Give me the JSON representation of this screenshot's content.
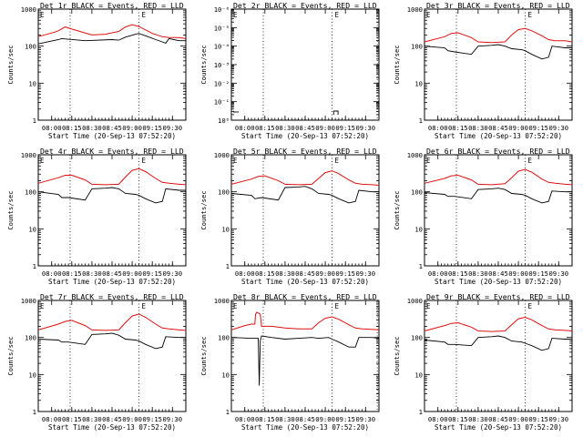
{
  "chart_data": [
    {
      "type": "line",
      "title": "Det 1r BLACK = Events, RED = LLD",
      "ylabel": "Counts/sec",
      "xlabel": "Start Time (20-Sep-13 07:52:20)",
      "yscale": "log",
      "ylim": [
        1,
        1000
      ],
      "yticklabels": [
        "1",
        "10",
        "100",
        "1000"
      ],
      "xticklabels": [
        "08:00",
        "08:15",
        "08:30",
        "08:45",
        "09:00",
        "09:15",
        "09:30"
      ],
      "xrange_minutes": [
        -4,
        40
      ],
      "vlines_minutes": [
        5.5,
        26
      ],
      "markers": [
        "E",
        "E"
      ],
      "series": [
        {
          "color": "#000000",
          "x": [
            -4,
            2,
            3,
            10,
            18,
            20,
            22,
            25,
            26,
            28,
            31,
            33,
            34,
            35,
            38,
            40
          ],
          "y": [
            115,
            150,
            160,
            140,
            150,
            145,
            175,
            210,
            220,
            190,
            150,
            130,
            120,
            160,
            140,
            140
          ]
        },
        {
          "color": "#e01010",
          "x": [
            -4,
            1,
            2,
            4,
            6,
            12,
            16,
            20,
            22,
            24,
            26,
            30,
            33,
            35,
            38,
            40
          ],
          "y": [
            180,
            240,
            260,
            330,
            290,
            200,
            210,
            250,
            330,
            380,
            340,
            220,
            180,
            170,
            170,
            160
          ]
        }
      ]
    },
    {
      "type": "line",
      "title": "Det 2r BLACK = Events, RED = LLD",
      "ylabel": "Counts/sec",
      "xlabel": "Start Time (20-Sep-13 07:52:20)",
      "yscale": "log",
      "ylim": [
        1,
        1e-06
      ],
      "yticklabels": [
        "10⁰",
        "10⁻¹",
        "10⁻²",
        "10⁻³",
        "10⁻⁴",
        "10⁻⁵",
        "10⁻⁶"
      ],
      "xticklabels": [
        "08:00",
        "08:15",
        "08:30",
        "08:45",
        "09:00",
        "09:15",
        "09:30"
      ],
      "xrange_minutes": [
        -4,
        40
      ],
      "vlines_minutes": [
        5.5,
        26,
        39.5
      ],
      "markers": [
        "E",
        "E"
      ],
      "series": []
    },
    {
      "type": "line",
      "title": "Det 3r BLACK = Events, RED = LLD",
      "ylabel": "Counts/sec",
      "xlabel": "Start Time (20-Sep-13 07:52:20)",
      "yscale": "log",
      "ylim": [
        1,
        1000
      ],
      "yticklabels": [
        "1",
        "10",
        "100",
        "1000"
      ],
      "xticklabels": [
        "08:00",
        "08:15",
        "08:30",
        "08:45",
        "09:00",
        "09:15",
        "09:30"
      ],
      "xrange_minutes": [
        -4,
        40
      ],
      "vlines_minutes": [
        5.5,
        26
      ],
      "markers": [
        "E",
        "E"
      ],
      "series": [
        {
          "color": "#000000",
          "x": [
            -4,
            2,
            3,
            5,
            10,
            12,
            16,
            18,
            20,
            22,
            25,
            26,
            28,
            31,
            33,
            34,
            38,
            40
          ],
          "y": [
            100,
            90,
            75,
            70,
            60,
            100,
            105,
            110,
            100,
            85,
            80,
            75,
            60,
            45,
            50,
            100,
            90,
            90
          ]
        },
        {
          "color": "#e01010",
          "x": [
            -4,
            2,
            4,
            6,
            10,
            12,
            16,
            20,
            22,
            24,
            26,
            28,
            31,
            33,
            35,
            38,
            40
          ],
          "y": [
            130,
            180,
            220,
            230,
            170,
            130,
            125,
            130,
            200,
            280,
            300,
            260,
            190,
            150,
            140,
            140,
            130
          ]
        }
      ]
    },
    {
      "type": "line",
      "title": "Det 4r BLACK = Events, RED = LLD",
      "ylabel": "Counts/sec",
      "xlabel": "Start Time (20-Sep-13 07:52:20)",
      "yscale": "log",
      "ylim": [
        1,
        1000
      ],
      "yticklabels": [
        "1",
        "10",
        "100",
        "1000"
      ],
      "xticklabels": [
        "08:00",
        "08:15",
        "08:30",
        "08:45",
        "09:00",
        "09:15",
        "09:30"
      ],
      "xrange_minutes": [
        -4,
        40
      ],
      "vlines_minutes": [
        5.5,
        26
      ],
      "markers": [
        "E",
        "E"
      ],
      "series": [
        {
          "color": "#000000",
          "x": [
            -4,
            2,
            3,
            5,
            10,
            12,
            16,
            18,
            20,
            22,
            25,
            26,
            28,
            31,
            33,
            34,
            38,
            40
          ],
          "y": [
            100,
            85,
            70,
            70,
            60,
            120,
            125,
            130,
            120,
            90,
            85,
            80,
            65,
            50,
            55,
            120,
            110,
            110
          ]
        },
        {
          "color": "#e01010",
          "x": [
            -4,
            2,
            4,
            6,
            10,
            12,
            16,
            20,
            22,
            24,
            26,
            28,
            31,
            33,
            35,
            38,
            40
          ],
          "y": [
            170,
            240,
            280,
            280,
            210,
            160,
            155,
            160,
            250,
            380,
            420,
            350,
            230,
            180,
            170,
            160,
            155
          ]
        }
      ]
    },
    {
      "type": "line",
      "title": "Det 5r BLACK = Events, RED = LLD",
      "ylabel": "Counts/sec",
      "xlabel": "Start Time (20-Sep-13 07:52:20)",
      "yscale": "log",
      "ylim": [
        1,
        1000
      ],
      "yticklabels": [
        "1",
        "10",
        "100",
        "1000"
      ],
      "xticklabels": [
        "08:00",
        "08:15",
        "08:30",
        "08:45",
        "09:00",
        "09:15",
        "09:30"
      ],
      "xrange_minutes": [
        -4,
        40
      ],
      "vlines_minutes": [
        5.5,
        26
      ],
      "markers": [
        "E",
        "E"
      ],
      "series": [
        {
          "color": "#000000",
          "x": [
            -4,
            2,
            3,
            5,
            10,
            12,
            16,
            18,
            20,
            22,
            25,
            26,
            28,
            31,
            33,
            34,
            38,
            40
          ],
          "y": [
            90,
            80,
            65,
            70,
            60,
            130,
            135,
            140,
            120,
            90,
            85,
            80,
            65,
            50,
            55,
            110,
            100,
            100
          ]
        },
        {
          "color": "#e01010",
          "x": [
            -4,
            2,
            4,
            6,
            10,
            12,
            16,
            20,
            22,
            24,
            26,
            28,
            31,
            33,
            35,
            38,
            40
          ],
          "y": [
            160,
            220,
            260,
            270,
            200,
            160,
            155,
            160,
            230,
            330,
            370,
            310,
            210,
            170,
            160,
            155,
            150
          ]
        }
      ]
    },
    {
      "type": "line",
      "title": "Det 6r BLACK = Events, RED = LLD",
      "ylabel": "Counts/sec",
      "xlabel": "Start Time (20-Sep-13 07:52:20)",
      "yscale": "log",
      "ylim": [
        1,
        1000
      ],
      "yticklabels": [
        "1",
        "10",
        "100",
        "1000"
      ],
      "xticklabels": [
        "08:00",
        "08:15",
        "08:30",
        "08:45",
        "09:00",
        "09:15",
        "09:30"
      ],
      "xrange_minutes": [
        -4,
        40
      ],
      "vlines_minutes": [
        5.5,
        26
      ],
      "markers": [
        "E",
        "E"
      ],
      "series": [
        {
          "color": "#000000",
          "x": [
            -4,
            2,
            3,
            5,
            10,
            12,
            16,
            18,
            20,
            22,
            25,
            26,
            28,
            31,
            33,
            34,
            38,
            40
          ],
          "y": [
            95,
            85,
            75,
            75,
            65,
            115,
            120,
            125,
            115,
            90,
            85,
            80,
            65,
            50,
            55,
            105,
            100,
            100
          ]
        },
        {
          "color": "#e01010",
          "x": [
            -4,
            2,
            4,
            6,
            10,
            12,
            16,
            20,
            22,
            24,
            26,
            28,
            31,
            33,
            35,
            38,
            40
          ],
          "y": [
            170,
            230,
            270,
            280,
            210,
            160,
            155,
            165,
            240,
            360,
            400,
            340,
            220,
            180,
            170,
            160,
            155
          ]
        }
      ]
    },
    {
      "type": "line",
      "title": "Det 7r BLACK = Events, RED = LLD",
      "ylabel": "Counts/sec",
      "xlabel": "Start Time (20-Sep-13 07:52:20)",
      "yscale": "log",
      "ylim": [
        1,
        1000
      ],
      "yticklabels": [
        "1",
        "10",
        "100",
        "1000"
      ],
      "xticklabels": [
        "08:00",
        "08:15",
        "08:30",
        "08:45",
        "09:00",
        "09:15",
        "09:30"
      ],
      "xrange_minutes": [
        -4,
        40
      ],
      "vlines_minutes": [
        5.5,
        26
      ],
      "markers": [
        "E",
        "E"
      ],
      "series": [
        {
          "color": "#000000",
          "x": [
            -4,
            2,
            3,
            5,
            10,
            12,
            16,
            18,
            20,
            22,
            25,
            26,
            28,
            31,
            33,
            34,
            38,
            40
          ],
          "y": [
            90,
            85,
            75,
            75,
            65,
            120,
            125,
            130,
            115,
            90,
            85,
            80,
            65,
            50,
            55,
            105,
            100,
            100
          ]
        },
        {
          "color": "#e01010",
          "x": [
            -4,
            2,
            4,
            6,
            10,
            12,
            16,
            20,
            22,
            24,
            26,
            28,
            31,
            33,
            35,
            38,
            40
          ],
          "y": [
            160,
            230,
            270,
            290,
            210,
            160,
            155,
            160,
            250,
            380,
            430,
            350,
            230,
            180,
            170,
            160,
            155
          ]
        }
      ]
    },
    {
      "type": "line",
      "title": "Det 8r BLACK = Events, RED = LLD",
      "ylabel": "Counts/sec",
      "xlabel": "Start Time (20-Sep-13 07:52:20)",
      "yscale": "log",
      "ylim": [
        1,
        1000
      ],
      "yticklabels": [
        "1",
        "10",
        "100",
        "1000"
      ],
      "xticklabels": [
        "08:00",
        "08:15",
        "08:30",
        "08:45",
        "09:00",
        "09:15",
        "09:30"
      ],
      "xrange_minutes": [
        -4,
        40
      ],
      "vlines_minutes": [
        5.5,
        26,
        39.5
      ],
      "markers": [
        "E",
        "E"
      ],
      "series": [
        {
          "color": "#000000",
          "x": [
            -4,
            2,
            3,
            4,
            4.3,
            4.6,
            5,
            8,
            12,
            16,
            20,
            22,
            25,
            26,
            28,
            31,
            33,
            34,
            38,
            40
          ],
          "y": [
            100,
            95,
            95,
            95,
            5,
            80,
            110,
            100,
            90,
            95,
            100,
            95,
            100,
            90,
            75,
            55,
            55,
            100,
            100,
            95
          ]
        },
        {
          "color": "#e01010",
          "x": [
            -4,
            0,
            2,
            3,
            3.2,
            3.6,
            4.6,
            5,
            8,
            12,
            16,
            20,
            22,
            24,
            26,
            28,
            31,
            33,
            35,
            38,
            40
          ],
          "y": [
            160,
            210,
            230,
            230,
            420,
            480,
            430,
            200,
            200,
            180,
            170,
            170,
            250,
            330,
            360,
            310,
            220,
            180,
            170,
            165,
            160
          ]
        }
      ]
    },
    {
      "type": "line",
      "title": "Det 9r BLACK = Events, RED = LLD",
      "ylabel": "Counts/sec",
      "xlabel": "Start Time (20-Sep-13 07:52:20)",
      "yscale": "log",
      "ylim": [
        1,
        1000
      ],
      "yticklabels": [
        "1",
        "10",
        "100",
        "1000"
      ],
      "xticklabels": [
        "08:00",
        "08:15",
        "08:30",
        "08:45",
        "09:00",
        "09:15",
        "09:30"
      ],
      "xrange_minutes": [
        -4,
        40
      ],
      "vlines_minutes": [
        5.5,
        26
      ],
      "markers": [
        "E",
        "E"
      ],
      "series": [
        {
          "color": "#000000",
          "x": [
            -4,
            2,
            3,
            5,
            10,
            12,
            16,
            18,
            20,
            22,
            25,
            26,
            28,
            31,
            33,
            34,
            38,
            40
          ],
          "y": [
            85,
            75,
            65,
            65,
            60,
            100,
            105,
            110,
            100,
            80,
            75,
            70,
            60,
            45,
            50,
            95,
            90,
            90
          ]
        },
        {
          "color": "#e01010",
          "x": [
            -4,
            2,
            4,
            6,
            10,
            12,
            16,
            20,
            22,
            24,
            26,
            28,
            31,
            33,
            35,
            38,
            40
          ],
          "y": [
            150,
            210,
            240,
            250,
            190,
            150,
            145,
            150,
            220,
            320,
            350,
            300,
            210,
            170,
            160,
            155,
            150
          ]
        }
      ]
    }
  ]
}
